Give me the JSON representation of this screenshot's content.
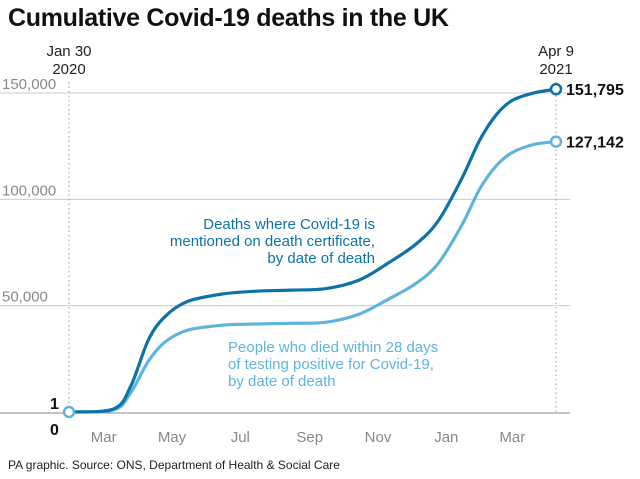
{
  "chart_data": {
    "type": "line",
    "title": "Cumulative Covid-19 deaths in the UK",
    "source": "PA graphic. Source: ONS, Department of Health & Social Care",
    "start_label": [
      "Jan 30",
      "2020"
    ],
    "end_label": [
      "Apr 9",
      "2021"
    ],
    "x_tick_labels": [
      "Mar",
      "May",
      "Jul",
      "Sep",
      "Nov",
      "Jan",
      "Mar"
    ],
    "y_tick_labels": [
      "150,000",
      "100,000",
      "50,000"
    ],
    "y_gridlines": [
      50000,
      100000,
      150000
    ],
    "ylim": [
      0,
      153000
    ],
    "zero_label": "0",
    "start_value_label": "1",
    "grid": true,
    "x_axis": {
      "start": "2020-01-30",
      "end": "2021-04-09",
      "ticks": [
        "2020-03-01",
        "2020-05-01",
        "2020-07-01",
        "2020-09-01",
        "2020-11-01",
        "2021-01-01",
        "2021-03-01"
      ]
    },
    "colors": {
      "series1": "#0e72a8",
      "series2": "#5fb4de",
      "grid": "#cccccc",
      "tick_text": "#888888"
    },
    "series": [
      {
        "label_lines": [
          "Deaths where Covid-19 is",
          "mentioned on death certificate,",
          "by date of death"
        ],
        "end_value": 151795,
        "end_label": "151,795",
        "points": [
          [
            "2020-01-30",
            1
          ],
          [
            "2020-03-10",
            1500
          ],
          [
            "2020-03-25",
            12000
          ],
          [
            "2020-04-10",
            34000
          ],
          [
            "2020-04-25",
            45000
          ],
          [
            "2020-05-15",
            52000
          ],
          [
            "2020-06-15",
            55500
          ],
          [
            "2020-07-15",
            56800
          ],
          [
            "2020-08-15",
            57300
          ],
          [
            "2020-09-15",
            58000
          ],
          [
            "2020-10-15",
            62000
          ],
          [
            "2020-11-10",
            70000
          ],
          [
            "2020-12-05",
            79000
          ],
          [
            "2020-12-25",
            90000
          ],
          [
            "2021-01-15",
            110000
          ],
          [
            "2021-01-31",
            128000
          ],
          [
            "2021-02-15",
            140000
          ],
          [
            "2021-03-01",
            146500
          ],
          [
            "2021-03-20",
            150000
          ],
          [
            "2021-04-09",
            151795
          ]
        ]
      },
      {
        "label_lines": [
          "People who died within 28 days",
          "of testing positive for Covid-19,",
          "by date of death"
        ],
        "end_value": 127142,
        "end_label": "127,142",
        "points": [
          [
            "2020-01-30",
            1
          ],
          [
            "2020-03-10",
            1000
          ],
          [
            "2020-03-25",
            9000
          ],
          [
            "2020-04-10",
            24000
          ],
          [
            "2020-04-25",
            33000
          ],
          [
            "2020-05-15",
            38500
          ],
          [
            "2020-06-15",
            40800
          ],
          [
            "2020-07-15",
            41400
          ],
          [
            "2020-08-15",
            41700
          ],
          [
            "2020-09-15",
            42200
          ],
          [
            "2020-10-15",
            46000
          ],
          [
            "2020-11-10",
            53000
          ],
          [
            "2020-12-05",
            60500
          ],
          [
            "2020-12-25",
            70000
          ],
          [
            "2021-01-15",
            88000
          ],
          [
            "2021-01-31",
            105000
          ],
          [
            "2021-02-15",
            116000
          ],
          [
            "2021-03-01",
            122000
          ],
          [
            "2021-03-20",
            125800
          ],
          [
            "2021-04-09",
            127142
          ]
        ]
      }
    ]
  }
}
